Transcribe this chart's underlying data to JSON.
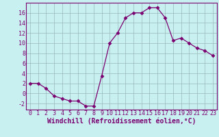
{
  "x": [
    0,
    1,
    2,
    3,
    4,
    5,
    6,
    7,
    8,
    9,
    10,
    11,
    12,
    13,
    14,
    15,
    16,
    17,
    18,
    19,
    20,
    21,
    22,
    23
  ],
  "y": [
    2,
    2,
    1,
    -0.5,
    -1,
    -1.5,
    -1.5,
    -2.5,
    -2.5,
    3.5,
    10,
    12,
    15,
    16,
    16,
    17,
    17,
    15,
    10.5,
    11,
    10,
    9,
    8.5,
    7.5
  ],
  "line_color": "#7B0070",
  "marker": "D",
  "marker_size": 2.5,
  "bg_color": "#c8f0f0",
  "grid_color": "#9ab8b8",
  "xlabel": "Windchill (Refroidissement éolien,°C)",
  "xlabel_color": "#7B0070",
  "xlabel_fontsize": 7,
  "ylabel_ticks": [
    -2,
    0,
    2,
    4,
    6,
    8,
    10,
    12,
    14,
    16
  ],
  "xtick_labels": [
    "0",
    "1",
    "2",
    "3",
    "4",
    "5",
    "6",
    "7",
    "8",
    "9",
    "10",
    "11",
    "12",
    "13",
    "14",
    "15",
    "16",
    "17",
    "18",
    "19",
    "20",
    "21",
    "22",
    "23"
  ],
  "xlim": [
    -0.5,
    23.5
  ],
  "ylim": [
    -3.2,
    18.0
  ],
  "tick_color": "#7B0070",
  "tick_fontsize": 6,
  "spine_color": "#7B0070"
}
